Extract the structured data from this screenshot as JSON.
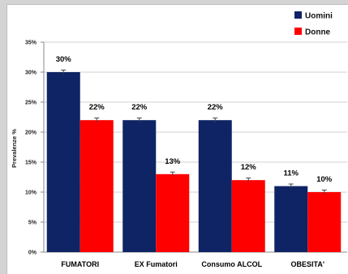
{
  "chart_data": {
    "type": "bar",
    "title": "",
    "xlabel": "",
    "ylabel": "Prevalenze %",
    "ylim": [
      0,
      35
    ],
    "yticks": [
      "0%",
      "5%",
      "10%",
      "15%",
      "20%",
      "25%",
      "30%",
      "35%"
    ],
    "categories": [
      "FUMATORI",
      "EX Fumatori",
      "Consumo ALCOL",
      "OBESITA'"
    ],
    "series": [
      {
        "name": "Uomini",
        "color": "#0e2464",
        "values": [
          30,
          22,
          22,
          11
        ],
        "labels": [
          "30%",
          "22%",
          "22%",
          "11%"
        ]
      },
      {
        "name": "Donne",
        "color": "#ff0000",
        "values": [
          22,
          13,
          12,
          10
        ],
        "labels": [
          "22%",
          "13%",
          "12%",
          "10%"
        ]
      }
    ],
    "error_bars": true,
    "grid": true,
    "legend_position": "top-right"
  }
}
